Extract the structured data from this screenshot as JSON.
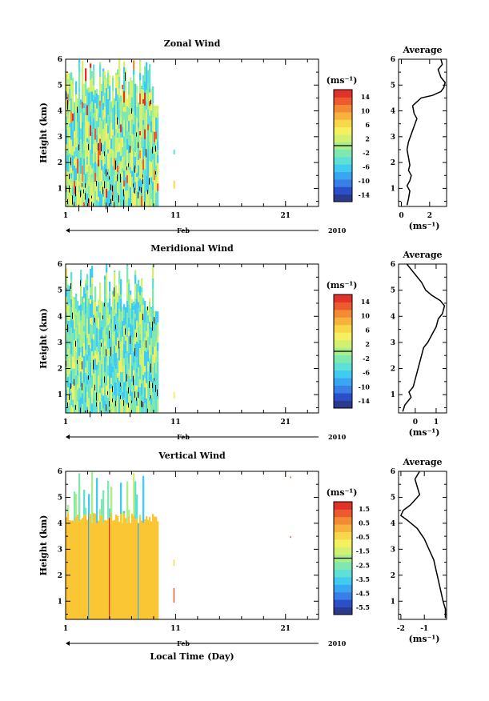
{
  "colors": {
    "scale": [
      "#2a3a8c",
      "#2b4fc9",
      "#3a7ee8",
      "#3aa6f2",
      "#40cbf0",
      "#5fe0d6",
      "#7ee8b0",
      "#a8ee8a",
      "#d4f070",
      "#f5f060",
      "#f8d84a",
      "#f6b23c",
      "#f38a34",
      "#ee5a30",
      "#e03228"
    ],
    "vertical_fill": "#fbc634",
    "contour": "#000000"
  },
  "chart_data": [
    {
      "type": "heatmap",
      "title": "Zonal Wind",
      "ylabel": "Height (km)",
      "xlabel": "",
      "x_ticks": [
        "1",
        "11",
        "21"
      ],
      "month_label": "Feb",
      "year_label": "2010",
      "yticks": [
        "1",
        "2",
        "3",
        "4",
        "5",
        "6"
      ],
      "ylim": [
        0.3,
        6
      ],
      "x_range_days": [
        1,
        24
      ],
      "data_extent_days": [
        1,
        9.5
      ],
      "colorbar": {
        "unit": "(ms⁻¹)",
        "labels": [
          "14",
          "10",
          "6",
          "2",
          "-2",
          "-6",
          "-10",
          "-14"
        ],
        "range": [
          -16,
          16
        ]
      },
      "profile": {
        "title": "Average",
        "xlabel": "(ms⁻¹)",
        "xticks": [
          "0",
          "2"
        ],
        "xlim": [
          -0.2,
          3.2
        ],
        "points": [
          [
            0.4,
            0.35
          ],
          [
            0.5,
            0.6
          ],
          [
            0.6,
            0.9
          ],
          [
            0.4,
            1.1
          ],
          [
            0.6,
            1.3
          ],
          [
            0.7,
            1.5
          ],
          [
            0.5,
            1.7
          ],
          [
            0.6,
            1.9
          ],
          [
            0.5,
            2.2
          ],
          [
            0.4,
            2.5
          ],
          [
            0.5,
            2.8
          ],
          [
            0.7,
            3.1
          ],
          [
            0.9,
            3.4
          ],
          [
            1.1,
            3.7
          ],
          [
            0.9,
            3.9
          ],
          [
            0.8,
            4.2
          ],
          [
            1.4,
            4.5
          ],
          [
            2.2,
            4.6
          ],
          [
            2.8,
            4.75
          ],
          [
            3.0,
            4.9
          ],
          [
            3.1,
            5.1
          ],
          [
            2.8,
            5.3
          ],
          [
            2.6,
            5.6
          ],
          [
            2.9,
            5.8
          ],
          [
            2.8,
            6.0
          ]
        ]
      }
    },
    {
      "type": "heatmap",
      "title": "Meridional Wind",
      "ylabel": "Height (km)",
      "xlabel": "",
      "x_ticks": [
        "1",
        "11",
        "21"
      ],
      "month_label": "Feb",
      "year_label": "2010",
      "yticks": [
        "1",
        "2",
        "3",
        "4",
        "5",
        "6"
      ],
      "ylim": [
        0.3,
        6
      ],
      "x_range_days": [
        1,
        24
      ],
      "data_extent_days": [
        1,
        9.5
      ],
      "colorbar": {
        "unit": "(ms⁻¹)",
        "labels": [
          "14",
          "10",
          "6",
          "2",
          "-2",
          "-6",
          "-10",
          "-14"
        ],
        "range": [
          -16,
          16
        ]
      },
      "profile": {
        "title": "Average",
        "xlabel": "(ms⁻¹)",
        "xticks": [
          "0",
          "1"
        ],
        "xlim": [
          -0.8,
          1.5
        ],
        "points": [
          [
            -0.6,
            0.35
          ],
          [
            -0.5,
            0.6
          ],
          [
            -0.2,
            0.9
          ],
          [
            -0.3,
            1.1
          ],
          [
            -0.1,
            1.3
          ],
          [
            0.0,
            1.6
          ],
          [
            0.1,
            1.9
          ],
          [
            0.2,
            2.2
          ],
          [
            0.3,
            2.5
          ],
          [
            0.4,
            2.8
          ],
          [
            0.6,
            3.0
          ],
          [
            0.8,
            3.3
          ],
          [
            1.0,
            3.6
          ],
          [
            1.1,
            3.9
          ],
          [
            1.3,
            4.1
          ],
          [
            1.4,
            4.4
          ],
          [
            1.2,
            4.6
          ],
          [
            0.8,
            4.8
          ],
          [
            0.5,
            5.0
          ],
          [
            0.3,
            5.3
          ],
          [
            0.0,
            5.6
          ],
          [
            -0.3,
            5.9
          ],
          [
            -0.4,
            6.0
          ]
        ]
      }
    },
    {
      "type": "heatmap",
      "title": "Vertical Wind",
      "ylabel": "Height (km)",
      "xlabel": "Local Time (Day)",
      "x_ticks": [
        "1",
        "11",
        "21"
      ],
      "month_label": "Feb",
      "year_label": "2010",
      "yticks": [
        "1",
        "2",
        "3",
        "4",
        "5",
        "6"
      ],
      "ylim": [
        0.3,
        6
      ],
      "x_range_days": [
        1,
        24
      ],
      "data_extent_days": [
        1,
        9.5
      ],
      "colorbar": {
        "unit": "(ms⁻¹)",
        "labels": [
          "1.5",
          "0.5",
          "-0.5",
          "-1.5",
          "-2.5",
          "-3.5",
          "-4.5",
          "-5.5"
        ],
        "range": [
          -6,
          2
        ]
      },
      "profile": {
        "title": "Average",
        "xlabel": "(ms⁻¹)",
        "xticks": [
          "-2",
          "-1"
        ],
        "xlim": [
          -2.1,
          -0.05
        ],
        "points": [
          [
            -0.1,
            0.35
          ],
          [
            -0.1,
            0.7
          ],
          [
            -0.2,
            1.0
          ],
          [
            -0.3,
            1.4
          ],
          [
            -0.4,
            1.8
          ],
          [
            -0.5,
            2.2
          ],
          [
            -0.6,
            2.6
          ],
          [
            -0.8,
            3.0
          ],
          [
            -1.0,
            3.4
          ],
          [
            -1.3,
            3.8
          ],
          [
            -1.7,
            4.1
          ],
          [
            -2.0,
            4.3
          ],
          [
            -1.9,
            4.5
          ],
          [
            -1.6,
            4.7
          ],
          [
            -1.4,
            4.9
          ],
          [
            -1.2,
            5.1
          ],
          [
            -1.3,
            5.4
          ],
          [
            -1.4,
            5.7
          ],
          [
            -1.2,
            6.0
          ]
        ]
      }
    }
  ]
}
